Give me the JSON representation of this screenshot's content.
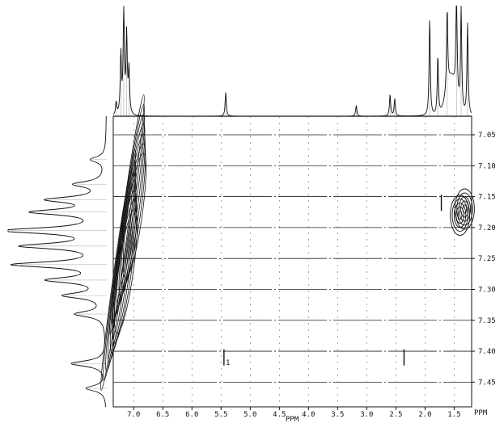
{
  "chart_data": {
    "type": "heatmap",
    "title": "",
    "xlabel": "PPM",
    "ylabel": "PPM",
    "corner_label": "PPM",
    "x_range_ppm": [
      7.35,
      1.2
    ],
    "y_range_ppm": [
      7.02,
      7.49
    ],
    "x_ticks": [
      {
        "value": 7.0,
        "label": "7.0"
      },
      {
        "value": 6.5,
        "label": "6.5"
      },
      {
        "value": 6.0,
        "label": "6.0"
      },
      {
        "value": 5.5,
        "label": "5.5"
      },
      {
        "value": 5.0,
        "label": "5.0"
      },
      {
        "value": 4.5,
        "label": "4.5"
      },
      {
        "value": 4.0,
        "label": "4.0"
      },
      {
        "value": 3.5,
        "label": "3.5"
      },
      {
        "value": 3.0,
        "label": "3.0"
      },
      {
        "value": 2.5,
        "label": "2.5"
      },
      {
        "value": 2.0,
        "label": "2.0"
      },
      {
        "value": 1.5,
        "label": "1.5"
      }
    ],
    "y_ticks": [
      {
        "value": 7.05,
        "label": "7.05"
      },
      {
        "value": 7.1,
        "label": "7.10"
      },
      {
        "value": 7.15,
        "label": "7.15"
      },
      {
        "value": 7.2,
        "label": "7.20"
      },
      {
        "value": 7.25,
        "label": "7.25"
      },
      {
        "value": 7.3,
        "label": "7.30"
      },
      {
        "value": 7.35,
        "label": "7.35"
      },
      {
        "value": 7.4,
        "label": "7.40"
      },
      {
        "value": 7.45,
        "label": "7.45"
      }
    ],
    "gridlines_y": [
      7.05,
      7.1,
      7.15,
      7.2,
      7.25,
      7.3,
      7.35,
      7.4,
      7.45
    ],
    "gridlines_x": [
      7.0,
      6.5,
      6.0,
      5.5,
      5.0,
      4.5,
      4.0,
      3.5,
      3.0,
      2.5,
      2.0,
      1.5
    ],
    "grid": true,
    "top_projection_peaks": [
      {
        "ppm": 7.3,
        "height": 0.12
      },
      {
        "ppm": 7.22,
        "height": 0.55
      },
      {
        "ppm": 7.17,
        "height": 0.92
      },
      {
        "ppm": 7.12,
        "height": 0.7
      },
      {
        "ppm": 7.08,
        "height": 0.4
      },
      {
        "ppm": 5.42,
        "height": 0.22
      },
      {
        "ppm": 3.18,
        "height": 0.1
      },
      {
        "ppm": 2.6,
        "height": 0.2
      },
      {
        "ppm": 2.52,
        "height": 0.16
      },
      {
        "ppm": 1.92,
        "height": 0.9
      },
      {
        "ppm": 1.78,
        "height": 0.55
      },
      {
        "ppm": 1.62,
        "height": 0.75
      },
      {
        "ppm": 1.46,
        "height": 1.0
      },
      {
        "ppm": 1.38,
        "height": 0.95
      },
      {
        "ppm": 1.27,
        "height": 0.85
      }
    ],
    "left_projection_peaks": [
      {
        "ppm": 7.09,
        "height": 0.15
      },
      {
        "ppm": 7.13,
        "height": 0.3
      },
      {
        "ppm": 7.155,
        "height": 0.55
      },
      {
        "ppm": 7.175,
        "height": 0.7
      },
      {
        "ppm": 7.205,
        "height": 1.0
      },
      {
        "ppm": 7.23,
        "height": 0.8
      },
      {
        "ppm": 7.26,
        "height": 0.9
      },
      {
        "ppm": 7.285,
        "height": 0.55
      },
      {
        "ppm": 7.31,
        "height": 0.4
      },
      {
        "ppm": 7.34,
        "height": 0.3
      },
      {
        "ppm": 7.42,
        "height": 0.35
      },
      {
        "ppm": 7.46,
        "height": 0.2
      }
    ],
    "cross_peaks": [
      {
        "x": 7.2,
        "y": 7.27,
        "kind": "aromatic-band"
      },
      {
        "x": 7.05,
        "y": 7.18,
        "kind": "aromatic-band"
      },
      {
        "x": 1.4,
        "y": 7.18,
        "kind": "contour"
      },
      {
        "x": 1.32,
        "y": 7.17,
        "kind": "contour"
      },
      {
        "x": 1.72,
        "y": 7.16,
        "kind": "streak"
      },
      {
        "x": 2.36,
        "y": 7.41,
        "kind": "streak"
      },
      {
        "x": 5.45,
        "y": 7.41,
        "kind": "streak"
      }
    ],
    "annotation": "1"
  }
}
